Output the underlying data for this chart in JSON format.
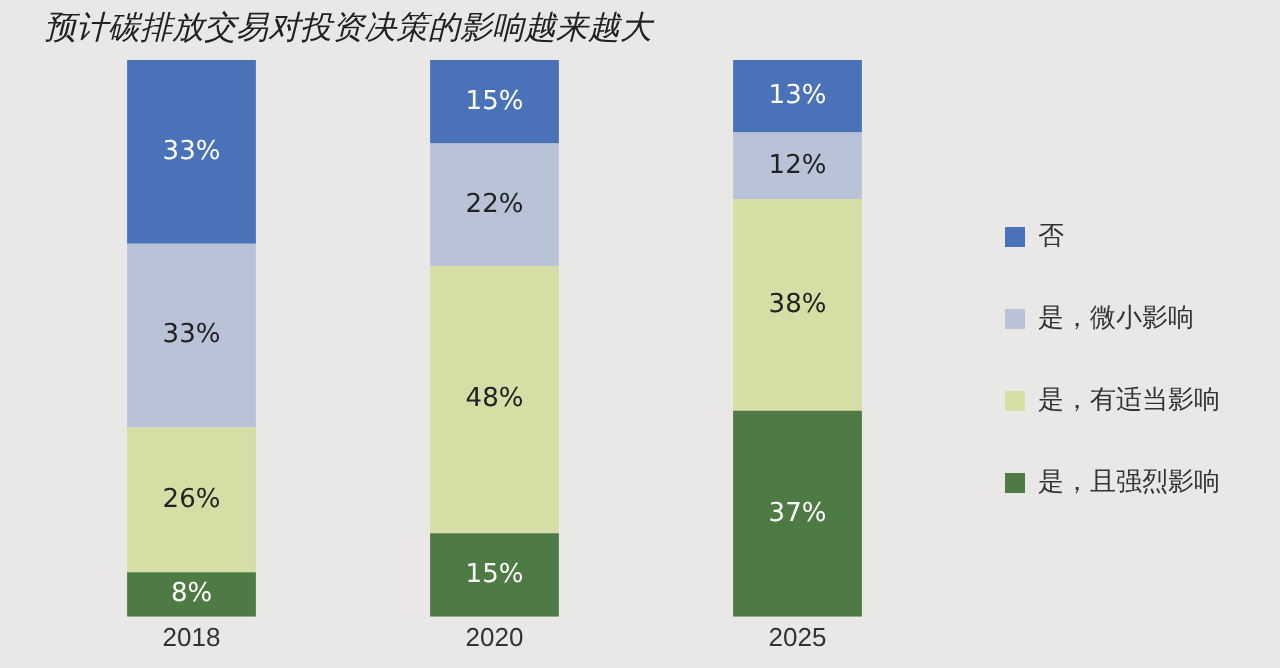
{
  "chart_data": {
    "type": "bar",
    "stacked": true,
    "title": "预计碳排放交易对投资决策的影响越来越大",
    "categories": [
      "2018",
      "2020",
      "2025"
    ],
    "series": [
      {
        "name": "是，且强烈影响",
        "color": "#4e7a44",
        "values": [
          8,
          15,
          37
        ],
        "value_labels": [
          "8%",
          "15%",
          "37%"
        ]
      },
      {
        "name": "是，有适当影响",
        "color": "#d6dea6",
        "values": [
          26,
          48,
          38
        ],
        "value_labels": [
          "26%",
          "48%",
          "38%"
        ]
      },
      {
        "name": "是，微小影响",
        "color": "#b9c3d8",
        "values": [
          33,
          22,
          12
        ],
        "value_labels": [
          "33%",
          "22%",
          "12%"
        ]
      },
      {
        "name": "否",
        "color": "#4a72b8",
        "values": [
          33,
          15,
          13
        ],
        "value_labels": [
          "33%",
          "15%",
          "13%"
        ]
      }
    ],
    "legend": "right",
    "grid": false
  }
}
